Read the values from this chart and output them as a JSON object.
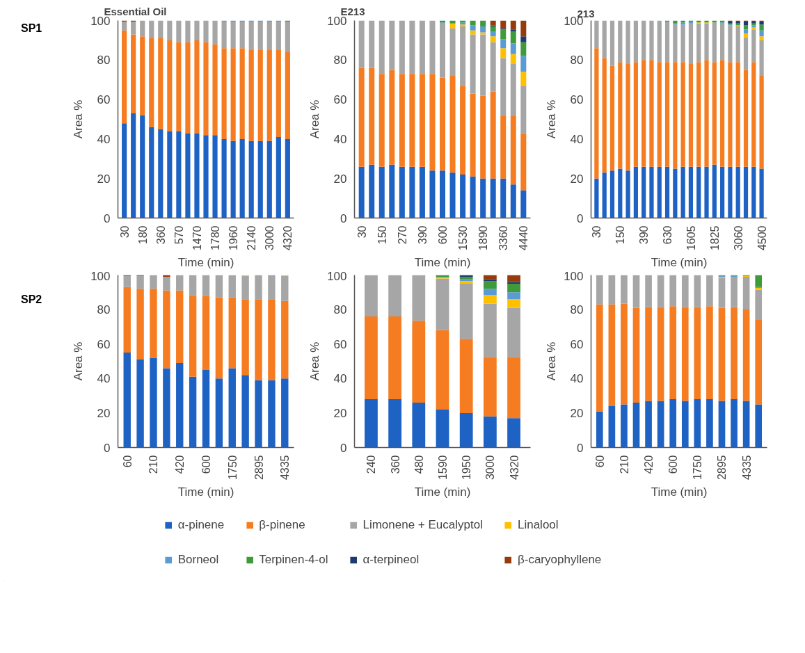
{
  "chart_data": [
    {
      "type": "bar",
      "stacked": true,
      "title": "Essential Oil",
      "annotations": [
        "SP1"
      ],
      "xlabel": "Time (min)",
      "ylabel": "Area %",
      "ylim": [
        0,
        100
      ],
      "yticks": [
        0,
        20,
        40,
        60,
        80,
        100
      ],
      "grid": false,
      "legend": "bottom",
      "categories": [
        "30",
        null,
        "180",
        null,
        "360",
        null,
        "570",
        null,
        "1470",
        null,
        "1780",
        null,
        "1960",
        null,
        "2140",
        null,
        "3000",
        null,
        "4320"
      ],
      "series": [
        {
          "name": "α-pinene",
          "color": "#1e62c4",
          "values": [
            48,
            53,
            52,
            46,
            45,
            44,
            44,
            43,
            43,
            42,
            42,
            40,
            39,
            40,
            39,
            39,
            39,
            41,
            40
          ]
        },
        {
          "name": "β-pinene",
          "color": "#f57c20",
          "values": [
            47,
            40,
            40,
            45,
            46,
            46,
            45,
            46,
            47,
            47,
            46,
            46,
            47,
            46,
            46,
            46,
            46,
            44,
            44
          ]
        },
        {
          "name": "Limonene + Eucalyptol",
          "color": "#a6a6a6",
          "values": [
            4.5,
            6.5,
            8,
            9,
            9,
            10,
            11,
            11,
            10,
            11,
            12,
            13.5,
            13.5,
            13.5,
            14.5,
            14.5,
            14.5,
            14.5,
            15.5
          ]
        },
        {
          "name": "Linalool",
          "color": "#ffc000",
          "values": [
            null,
            null,
            null,
            null,
            null,
            null,
            null,
            null,
            null,
            null,
            null,
            null,
            null,
            null,
            null,
            null,
            null,
            null,
            null
          ]
        },
        {
          "name": "Borneol",
          "color": "#5b9bd5",
          "values": [
            null,
            null,
            null,
            null,
            null,
            null,
            null,
            null,
            null,
            null,
            null,
            0.5,
            0.5,
            0.5,
            0.5,
            0.5,
            0.5,
            0.5,
            null
          ]
        },
        {
          "name": "Terpinen-4-ol",
          "color": "#3f9a3a",
          "values": [
            null,
            null,
            null,
            null,
            null,
            null,
            null,
            null,
            null,
            null,
            null,
            null,
            null,
            null,
            null,
            null,
            null,
            null,
            0.5
          ]
        },
        {
          "name": "α-terpineol",
          "color": "#1f3a6e",
          "values": [
            null,
            null,
            null,
            null,
            null,
            null,
            null,
            null,
            null,
            null,
            null,
            null,
            null,
            null,
            null,
            null,
            null,
            null,
            null
          ]
        },
        {
          "name": "β-caryophyllene",
          "color": "#943c0c",
          "values": [
            0.5,
            0.5,
            null,
            null,
            null,
            null,
            null,
            null,
            null,
            null,
            null,
            null,
            null,
            null,
            null,
            null,
            null,
            null,
            null
          ]
        }
      ]
    },
    {
      "type": "bar",
      "stacked": true,
      "title": "E213",
      "xlabel": "Time (min)",
      "ylabel": "Area %",
      "ylim": [
        0,
        100
      ],
      "yticks": [
        0,
        20,
        40,
        60,
        80,
        100
      ],
      "grid": false,
      "categories": [
        "30",
        null,
        "150",
        null,
        "270",
        null,
        "390",
        null,
        "600",
        null,
        "1530",
        null,
        "1890",
        null,
        "3360",
        null,
        "4440"
      ],
      "series": [
        {
          "color": "#1e62c4",
          "values": [
            26,
            27,
            26,
            27,
            26,
            26,
            26,
            24,
            24,
            23,
            22,
            21,
            20,
            20,
            20,
            17,
            14
          ]
        },
        {
          "color": "#f57c20",
          "values": [
            50,
            49,
            47,
            48,
            47,
            47,
            47,
            49,
            47,
            49,
            45,
            42,
            42,
            44,
            32,
            35,
            29
          ]
        },
        {
          "color": "#a6a6a6",
          "values": [
            24,
            24,
            27,
            25,
            27,
            27,
            27,
            27,
            27.5,
            24,
            30,
            30,
            31,
            25,
            29,
            26,
            24
          ]
        },
        {
          "color": "#ffc000",
          "values": [
            null,
            null,
            null,
            null,
            null,
            null,
            null,
            null,
            null,
            2.5,
            1,
            2,
            1,
            3,
            5,
            5,
            7
          ]
        },
        {
          "color": "#5b9bd5",
          "values": [
            null,
            null,
            null,
            null,
            null,
            null,
            null,
            null,
            0.5,
            null,
            1,
            2.5,
            3,
            2.5,
            4.5,
            5.5,
            8
          ]
        },
        {
          "color": "#3f9a3a",
          "values": [
            null,
            null,
            null,
            null,
            null,
            null,
            null,
            null,
            1,
            1.5,
            1,
            2.5,
            3,
            2.5,
            5,
            6,
            7
          ]
        },
        {
          "color": "#1f3a6e",
          "values": [
            null,
            null,
            null,
            null,
            null,
            null,
            null,
            null,
            null,
            null,
            null,
            null,
            null,
            0.5,
            0.5,
            1,
            3
          ]
        },
        {
          "color": "#943c0c",
          "values": [
            null,
            null,
            null,
            null,
            null,
            null,
            null,
            null,
            null,
            null,
            null,
            null,
            null,
            2.5,
            4,
            4.5,
            8
          ]
        }
      ]
    },
    {
      "type": "bar",
      "stacked": true,
      "title": "213",
      "xlabel": "Time (min)",
      "ylabel": "Area %",
      "ylim": [
        0,
        100
      ],
      "yticks": [
        0,
        20,
        40,
        60,
        80,
        100
      ],
      "grid": false,
      "categories": [
        "30",
        null,
        null,
        "150",
        null,
        null,
        "390",
        null,
        null,
        "630",
        null,
        null,
        "1605",
        null,
        null,
        "1825",
        null,
        null,
        "3060",
        null,
        null,
        "4500"
      ],
      "series": [
        {
          "color": "#1e62c4",
          "values": [
            20,
            23,
            24,
            25,
            24,
            26,
            26,
            26,
            26,
            26,
            25,
            26,
            26,
            26,
            26,
            27,
            26,
            26,
            26,
            26,
            26,
            25
          ]
        },
        {
          "color": "#f57c20",
          "values": [
            66,
            58,
            53,
            54,
            54,
            53,
            54,
            54,
            53,
            53,
            54,
            53,
            52,
            53,
            54,
            52,
            54,
            53,
            53,
            49,
            53,
            47
          ]
        },
        {
          "color": "#a6a6a6",
          "values": [
            14,
            19,
            23,
            21,
            22,
            21,
            20,
            20,
            21,
            20.5,
            19,
            19,
            20.5,
            19.5,
            18.5,
            20,
            18.5,
            18.5,
            18,
            16.5,
            16.5,
            18
          ]
        },
        {
          "color": "#ffc000",
          "values": [
            null,
            null,
            null,
            null,
            null,
            null,
            null,
            null,
            null,
            null,
            null,
            null,
            null,
            0.5,
            0.5,
            null,
            null,
            null,
            0.5,
            2,
            1,
            2
          ]
        },
        {
          "color": "#5b9bd5",
          "values": [
            null,
            null,
            null,
            null,
            null,
            null,
            null,
            null,
            null,
            null,
            0.5,
            1,
            1,
            null,
            null,
            null,
            0.5,
            0.5,
            null,
            2,
            1,
            3
          ]
        },
        {
          "color": "#3f9a3a",
          "values": [
            null,
            null,
            null,
            null,
            null,
            null,
            null,
            null,
            null,
            0.5,
            1.5,
            1,
            0.5,
            1,
            1,
            1,
            1,
            0.5,
            1,
            2,
            1,
            3
          ]
        },
        {
          "color": "#1f3a6e",
          "values": [
            null,
            null,
            null,
            null,
            null,
            null,
            null,
            null,
            null,
            null,
            null,
            null,
            null,
            null,
            null,
            null,
            null,
            1,
            1,
            2,
            1,
            1.5
          ]
        },
        {
          "color": "#943c0c",
          "values": [
            null,
            null,
            null,
            null,
            null,
            null,
            null,
            null,
            null,
            null,
            null,
            null,
            null,
            null,
            null,
            null,
            null,
            0.5,
            0.5,
            0.5,
            0.5,
            0.5
          ]
        }
      ]
    },
    {
      "type": "bar",
      "stacked": true,
      "annotations": [
        "SP2"
      ],
      "xlabel": "Time (min)",
      "ylabel": "Area %",
      "ylim": [
        0,
        100
      ],
      "yticks": [
        0,
        20,
        40,
        60,
        80,
        100
      ],
      "grid": false,
      "categories": [
        "60",
        null,
        "210",
        null,
        "420",
        null,
        "600",
        null,
        "1750",
        null,
        "2895",
        null,
        "4335"
      ],
      "series": [
        {
          "color": "#1e62c4",
          "values": [
            55,
            51,
            52,
            46,
            49,
            41,
            45,
            40,
            46,
            42,
            39,
            39,
            40
          ]
        },
        {
          "color": "#f57c20",
          "values": [
            38,
            41,
            40,
            45,
            42,
            47,
            43,
            47,
            41,
            44,
            47,
            47,
            45
          ]
        },
        {
          "color": "#a6a6a6",
          "values": [
            6.5,
            7.5,
            8,
            8,
            9,
            12,
            12,
            13,
            13,
            13.5,
            14,
            13.5,
            14.5
          ]
        },
        {
          "color": "#ffc000",
          "values": [
            null,
            null,
            null,
            null,
            null,
            null,
            null,
            null,
            null,
            0.5,
            null,
            null,
            0.5
          ]
        },
        {
          "color": "#5b9bd5",
          "values": [
            null,
            null,
            null,
            null,
            null,
            null,
            null,
            null,
            null,
            null,
            null,
            0.5,
            null
          ]
        },
        {
          "color": "#943c0c",
          "values": [
            0.5,
            0.5,
            null,
            1,
            null,
            null,
            null,
            null,
            null,
            null,
            null,
            null,
            null
          ]
        }
      ]
    },
    {
      "type": "bar",
      "stacked": true,
      "xlabel": "Time (min)",
      "ylabel": "Area %",
      "ylim": [
        0,
        100
      ],
      "yticks": [
        0,
        20,
        40,
        60,
        80,
        100
      ],
      "grid": false,
      "categories": [
        "240",
        "360",
        "480",
        "1590",
        "1950",
        "3000",
        "4320"
      ],
      "series": [
        {
          "color": "#1e62c4",
          "values": [
            28,
            28,
            26,
            22,
            20,
            18,
            17
          ]
        },
        {
          "color": "#f57c20",
          "values": [
            48,
            48,
            47.5,
            46,
            43,
            34.5,
            35.5
          ]
        },
        {
          "color": "#a6a6a6",
          "values": [
            24,
            24,
            26.5,
            30,
            32,
            31,
            28.5
          ]
        },
        {
          "color": "#ffc000",
          "values": [
            null,
            null,
            null,
            0.5,
            1.5,
            5,
            5
          ]
        },
        {
          "color": "#5b9bd5",
          "values": [
            null,
            null,
            null,
            0.5,
            1,
            3.5,
            4
          ]
        },
        {
          "color": "#3f9a3a",
          "values": [
            null,
            null,
            null,
            1,
            1.5,
            4.5,
            5
          ]
        },
        {
          "color": "#1f3a6e",
          "values": [
            null,
            null,
            null,
            null,
            1,
            1,
            1
          ]
        },
        {
          "color": "#943c0c",
          "values": [
            null,
            null,
            null,
            null,
            null,
            2.5,
            4
          ]
        }
      ]
    },
    {
      "type": "bar",
      "stacked": true,
      "xlabel": "Time (min)",
      "ylabel": "Area %",
      "ylim": [
        0,
        100
      ],
      "yticks": [
        0,
        20,
        40,
        60,
        80,
        100
      ],
      "grid": false,
      "categories": [
        "60",
        null,
        "210",
        null,
        "420",
        null,
        "600",
        null,
        "1750",
        null,
        "2895",
        null,
        "4335",
        null
      ],
      "series": [
        {
          "color": "#1e62c4",
          "values": [
            21,
            24,
            25,
            26,
            27,
            27,
            28,
            27,
            28,
            28,
            27,
            28,
            27,
            25
          ]
        },
        {
          "color": "#f57c20",
          "values": [
            62,
            59,
            58.5,
            55,
            54.5,
            54.5,
            54,
            54.5,
            53.5,
            54,
            54,
            53.5,
            53,
            49
          ]
        },
        {
          "color": "#a6a6a6",
          "values": [
            17,
            17,
            16.5,
            19,
            18.5,
            18.5,
            18,
            18.5,
            18.5,
            18,
            17.5,
            17.5,
            19,
            17.5
          ]
        },
        {
          "color": "#ffc000",
          "values": [
            null,
            null,
            null,
            null,
            null,
            null,
            null,
            null,
            null,
            null,
            0.5,
            null,
            0.5,
            1
          ]
        },
        {
          "color": "#5b9bd5",
          "values": [
            null,
            null,
            null,
            null,
            null,
            null,
            null,
            null,
            null,
            null,
            0.5,
            0.5,
            null,
            0.5
          ]
        },
        {
          "color": "#3f9a3a",
          "values": [
            null,
            null,
            null,
            null,
            null,
            null,
            null,
            null,
            null,
            null,
            0.5,
            0.5,
            0.5,
            7
          ]
        }
      ]
    }
  ]
}
